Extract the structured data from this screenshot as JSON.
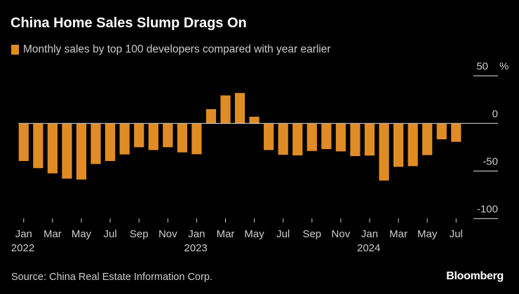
{
  "title": "China Home Sales Slump Drags On",
  "source": "Source: China Real Estate Information Corp.",
  "logo": "Bloomberg",
  "chart_data": {
    "type": "bar",
    "title": "China Home Sales Slump Drags On",
    "legend": [
      {
        "name": "Monthly sales by top 100 developers compared with year earlier",
        "color": "#e08c25"
      }
    ],
    "legend_placement": "top-left",
    "y_unit": "%",
    "ylim": [
      -100,
      50
    ],
    "yticks": [
      50,
      0,
      -50,
      -100
    ],
    "ytick_labels": [
      "50 %",
      "0",
      "-50",
      "-100"
    ],
    "y_axis_side": "right",
    "categories": [
      "2022-01",
      "2022-02",
      "2022-03",
      "2022-04",
      "2022-05",
      "2022-06",
      "2022-07",
      "2022-08",
      "2022-09",
      "2022-10",
      "2022-11",
      "2022-12",
      "2023-01",
      "2023-02",
      "2023-03",
      "2023-04",
      "2023-05",
      "2023-06",
      "2023-07",
      "2023-08",
      "2023-09",
      "2023-10",
      "2023-11",
      "2023-12",
      "2024-01",
      "2024-02",
      "2024-03",
      "2024-04",
      "2024-05",
      "2024-06",
      "2024-07"
    ],
    "values": [
      -39.5,
      -47,
      -52.5,
      -58,
      -59,
      -42.7,
      -39.5,
      -32.6,
      -25,
      -28,
      -25,
      -30.4,
      -32.4,
      15,
      29.4,
      32,
      7,
      -28,
      -33,
      -33.6,
      -29,
      -27,
      -29.4,
      -34.3,
      -33.8,
      -60,
      -45.6,
      -44.9,
      -33.3,
      -16.7,
      -19.4
    ],
    "xtick_labels": [
      {
        "index": 0,
        "label": "Jan",
        "year": "2022"
      },
      {
        "index": 2,
        "label": "Mar"
      },
      {
        "index": 4,
        "label": "May"
      },
      {
        "index": 6,
        "label": "Jul"
      },
      {
        "index": 8,
        "label": "Sep"
      },
      {
        "index": 10,
        "label": "Nov"
      },
      {
        "index": 12,
        "label": "Jan",
        "year": "2023"
      },
      {
        "index": 14,
        "label": "Mar"
      },
      {
        "index": 16,
        "label": "May"
      },
      {
        "index": 18,
        "label": "Jul"
      },
      {
        "index": 20,
        "label": "Sep"
      },
      {
        "index": 22,
        "label": "Nov"
      },
      {
        "index": 24,
        "label": "Jan",
        "year": "2024"
      },
      {
        "index": 26,
        "label": "Mar"
      },
      {
        "index": 28,
        "label": "May"
      },
      {
        "index": 30,
        "label": "Jul"
      }
    ],
    "grid": false
  }
}
